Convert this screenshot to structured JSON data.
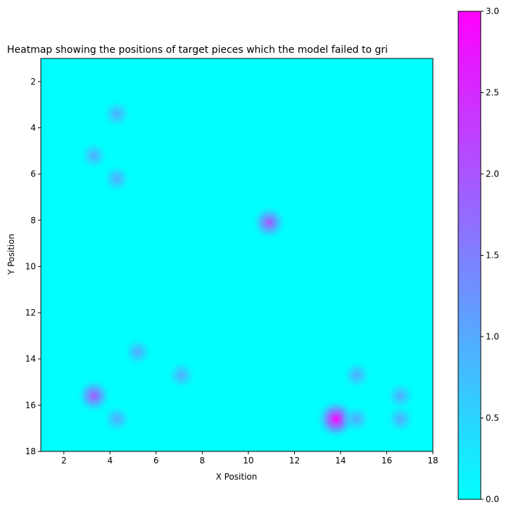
{
  "chart_data": {
    "type": "heatmap",
    "title": "Heatmap showing the positions of target pieces which the model failed to gri",
    "xlabel": "X Position",
    "ylabel": "Y Position",
    "xlim": [
      1,
      18
    ],
    "ylim": [
      18,
      1
    ],
    "x_ticks": [
      2,
      4,
      6,
      8,
      10,
      12,
      14,
      16,
      18
    ],
    "y_ticks": [
      2,
      4,
      6,
      8,
      10,
      12,
      14,
      16,
      18
    ],
    "colormap": "cool",
    "colorbar": {
      "range": [
        0.0,
        3.0
      ],
      "ticks": [
        "0.0",
        "0.5",
        "1.0",
        "1.5",
        "2.0",
        "2.5",
        "3.0"
      ],
      "color_low": "#00ffff",
      "color_high": "#ff00ff"
    },
    "grid": false,
    "points": [
      {
        "x": 4.3,
        "y": 3.4,
        "value": 1
      },
      {
        "x": 3.3,
        "y": 5.2,
        "value": 1
      },
      {
        "x": 4.3,
        "y": 6.2,
        "value": 1
      },
      {
        "x": 10.9,
        "y": 8.1,
        "value": 2
      },
      {
        "x": 5.2,
        "y": 13.7,
        "value": 1
      },
      {
        "x": 7.1,
        "y": 14.7,
        "value": 1
      },
      {
        "x": 14.7,
        "y": 14.7,
        "value": 1
      },
      {
        "x": 3.3,
        "y": 15.6,
        "value": 2
      },
      {
        "x": 16.6,
        "y": 15.6,
        "value": 1
      },
      {
        "x": 4.3,
        "y": 16.6,
        "value": 1
      },
      {
        "x": 13.8,
        "y": 16.6,
        "value": 3
      },
      {
        "x": 14.7,
        "y": 16.6,
        "value": 1
      },
      {
        "x": 16.6,
        "y": 16.6,
        "value": 1
      }
    ]
  }
}
